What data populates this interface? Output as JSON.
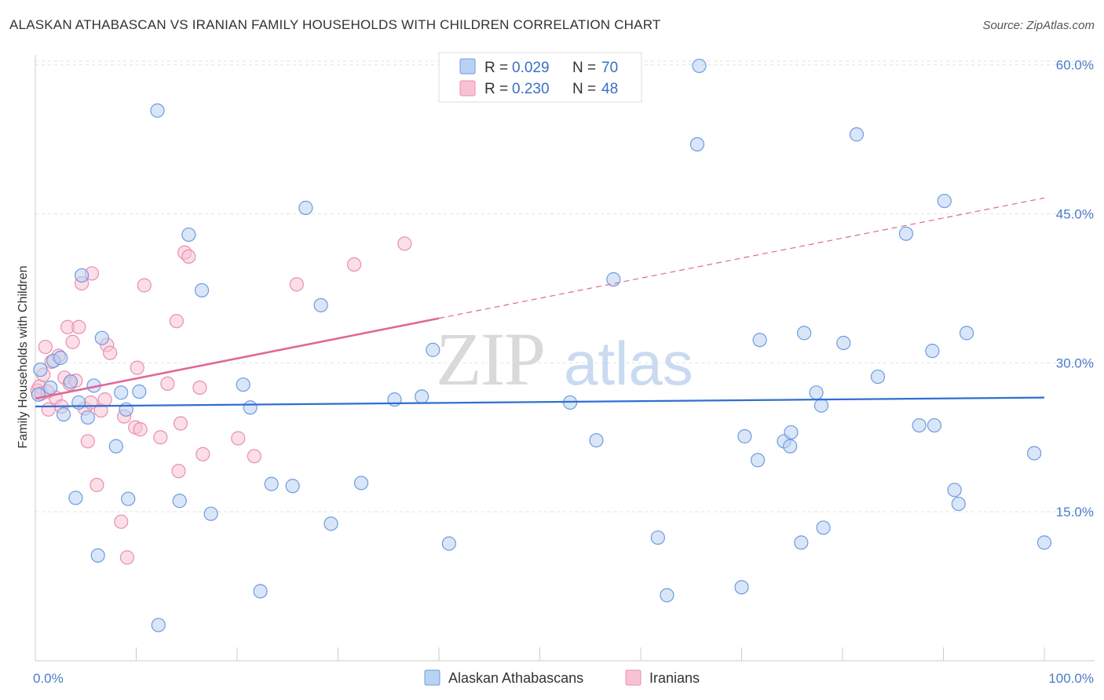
{
  "title": "ALASKAN ATHABASCAN VS IRANIAN FAMILY HOUSEHOLDS WITH CHILDREN CORRELATION CHART",
  "source": "Source: ZipAtlas.com",
  "colors": {
    "blue_fill": "#b9d2f2",
    "blue_stroke": "#6d9be0",
    "blue_line": "#2f6fd1",
    "pink_fill": "#f7c3d3",
    "pink_stroke": "#e98fae",
    "pink_line": "#e0679a",
    "grid": "#e2e2e2",
    "tick_label": "#4a7cc9"
  },
  "legend": {
    "rows": [
      {
        "r_label": "R = ",
        "r_value": "0.029",
        "n_label": "N = ",
        "n_value": "70"
      },
      {
        "r_label": "R = ",
        "r_value": "0.230",
        "n_label": "N = ",
        "n_value": "48"
      }
    ]
  },
  "watermark": {
    "zip": "ZIP",
    "atlas": "atlas"
  },
  "chart_data": {
    "type": "scatter",
    "title": "ALASKAN ATHABASCAN VS IRANIAN FAMILY HOUSEHOLDS WITH CHILDREN CORRELATION CHART",
    "xlabel": "",
    "ylabel": "Family Households with Children",
    "xlim": [
      0,
      100
    ],
    "ylim": [
      0,
      61
    ],
    "x_tick_labels": [
      "0.0%",
      "100.0%"
    ],
    "y_ticks": [
      15,
      30,
      45,
      60
    ],
    "y_tick_labels": [
      "15.0%",
      "30.0%",
      "45.0%",
      "60.0%"
    ],
    "grid": true,
    "legend_placement": "bottom-center",
    "series": [
      {
        "name": "Alaskan Athabascans",
        "color": "#6d9be0",
        "trend": {
          "x": [
            0,
            100
          ],
          "y": [
            25.6,
            26.5
          ],
          "dashed_from": null
        },
        "points": [
          [
            0.5,
            29.3
          ],
          [
            1.5,
            27.5
          ],
          [
            1.8,
            30.2
          ],
          [
            2.5,
            30.5
          ],
          [
            2.8,
            24.8
          ],
          [
            3.5,
            28.1
          ],
          [
            4.0,
            16.4
          ],
          [
            4.3,
            26.0
          ],
          [
            4.6,
            38.8
          ],
          [
            5.2,
            24.5
          ],
          [
            5.8,
            27.7
          ],
          [
            6.2,
            10.6
          ],
          [
            6.6,
            32.5
          ],
          [
            8.0,
            21.6
          ],
          [
            8.5,
            27.0
          ],
          [
            9.0,
            25.3
          ],
          [
            9.2,
            16.3
          ],
          [
            10.3,
            27.1
          ],
          [
            12.1,
            55.4
          ],
          [
            12.2,
            3.6
          ],
          [
            14.3,
            16.1
          ],
          [
            15.2,
            42.9
          ],
          [
            16.5,
            37.3
          ],
          [
            17.4,
            14.8
          ],
          [
            20.6,
            27.8
          ],
          [
            21.3,
            25.5
          ],
          [
            22.3,
            7.0
          ],
          [
            23.4,
            17.8
          ],
          [
            25.5,
            17.6
          ],
          [
            26.8,
            45.6
          ],
          [
            28.3,
            35.8
          ],
          [
            29.3,
            13.8
          ],
          [
            32.3,
            17.9
          ],
          [
            35.6,
            26.3
          ],
          [
            38.3,
            26.6
          ],
          [
            39.4,
            31.3
          ],
          [
            41.0,
            11.8
          ],
          [
            55.6,
            22.2
          ],
          [
            53.0,
            26.0
          ],
          [
            57.3,
            38.4
          ],
          [
            61.7,
            12.4
          ],
          [
            62.6,
            6.6
          ],
          [
            65.6,
            52.0
          ],
          [
            65.8,
            59.9
          ],
          [
            70.0,
            7.4
          ],
          [
            70.3,
            22.6
          ],
          [
            71.6,
            20.2
          ],
          [
            71.8,
            32.3
          ],
          [
            74.2,
            22.1
          ],
          [
            74.8,
            21.6
          ],
          [
            74.9,
            23.0
          ],
          [
            75.9,
            11.9
          ],
          [
            76.2,
            33.0
          ],
          [
            77.4,
            27.0
          ],
          [
            77.9,
            25.7
          ],
          [
            78.1,
            13.4
          ],
          [
            80.1,
            32.0
          ],
          [
            81.4,
            53.0
          ],
          [
            83.5,
            28.6
          ],
          [
            86.3,
            43.0
          ],
          [
            87.6,
            23.7
          ],
          [
            88.9,
            31.2
          ],
          [
            89.1,
            23.7
          ],
          [
            90.1,
            46.3
          ],
          [
            91.1,
            17.2
          ],
          [
            91.5,
            15.8
          ],
          [
            92.3,
            33.0
          ],
          [
            99.0,
            20.9
          ],
          [
            100.0,
            11.9
          ],
          [
            0.3,
            26.8
          ]
        ]
      },
      {
        "name": "Iranians",
        "color": "#e98fae",
        "trend": {
          "x": [
            0,
            100
          ],
          "y": [
            26.4,
            46.6
          ],
          "dashed_from": 40
        },
        "points": [
          [
            0.2,
            27.2
          ],
          [
            0.4,
            27.6
          ],
          [
            0.6,
            26.9
          ],
          [
            0.8,
            28.8
          ],
          [
            1.0,
            31.6
          ],
          [
            1.3,
            25.3
          ],
          [
            1.6,
            30.1
          ],
          [
            2.0,
            26.5
          ],
          [
            2.3,
            30.7
          ],
          [
            2.6,
            25.6
          ],
          [
            2.9,
            28.5
          ],
          [
            3.2,
            33.6
          ],
          [
            3.4,
            27.9
          ],
          [
            3.7,
            32.1
          ],
          [
            4.0,
            28.2
          ],
          [
            4.3,
            33.6
          ],
          [
            4.6,
            38.0
          ],
          [
            4.9,
            25.4
          ],
          [
            5.2,
            22.1
          ],
          [
            5.5,
            26.0
          ],
          [
            5.6,
            39.0
          ],
          [
            6.1,
            17.7
          ],
          [
            6.5,
            25.2
          ],
          [
            6.9,
            26.3
          ],
          [
            7.1,
            31.8
          ],
          [
            7.4,
            31.0
          ],
          [
            8.5,
            14.0
          ],
          [
            8.8,
            24.6
          ],
          [
            9.1,
            10.4
          ],
          [
            9.9,
            23.5
          ],
          [
            10.1,
            29.5
          ],
          [
            10.4,
            23.3
          ],
          [
            10.8,
            37.8
          ],
          [
            12.4,
            22.5
          ],
          [
            13.1,
            27.9
          ],
          [
            14.0,
            34.2
          ],
          [
            14.2,
            19.1
          ],
          [
            14.4,
            23.9
          ],
          [
            14.8,
            41.1
          ],
          [
            15.2,
            40.7
          ],
          [
            16.3,
            27.5
          ],
          [
            16.6,
            20.8
          ],
          [
            20.1,
            22.4
          ],
          [
            21.7,
            20.6
          ],
          [
            25.9,
            37.9
          ],
          [
            31.6,
            39.9
          ],
          [
            36.6,
            42.0
          ],
          [
            1.2,
            27.1
          ]
        ]
      }
    ]
  }
}
